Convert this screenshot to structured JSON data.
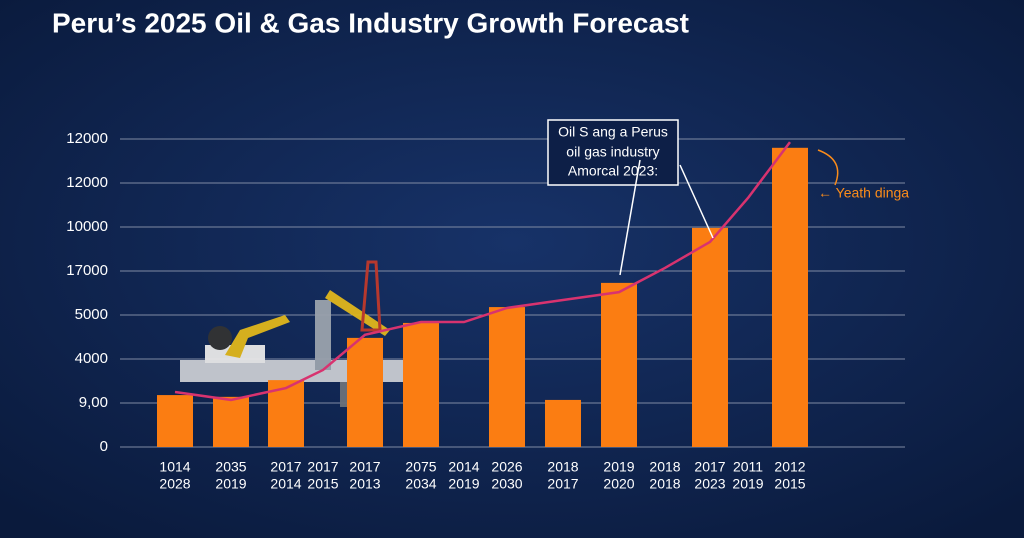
{
  "chart_data": {
    "type": "bar_line",
    "title": "Peru’s 2025 Oil & Gas Industry Growth Forecast",
    "annotation": [
      "Oil S ang a Perus",
      "oil gas industry",
      "Amorcal 2023:"
    ],
    "side_note": "← Yeath dinga",
    "categories": [
      [
        "1014",
        "2028"
      ],
      [
        "2035",
        "2019"
      ],
      [
        "2017",
        "2014"
      ],
      [
        "2017",
        "2015"
      ],
      [
        "2017",
        "2013"
      ],
      [
        "2075",
        "2034"
      ],
      [
        "2014",
        "2019"
      ],
      [
        "2026",
        "2030"
      ],
      [
        "2018",
        "2017"
      ],
      [
        "2019",
        "2020"
      ],
      [
        "2018",
        "2018"
      ],
      [
        "2017",
        "2023"
      ],
      [
        "2011",
        "2019"
      ],
      [
        "2012",
        "2015"
      ]
    ],
    "series": [
      {
        "type": "bar",
        "color": "#fb7d12",
        "values": [
          1.18,
          1.14,
          1.52,
          null,
          2.48,
          2.82,
          null,
          3.18,
          1.07,
          3.73,
          null,
          4.98,
          null,
          6.8
        ]
      },
      {
        "type": "line",
        "color": "#d8336f",
        "values": [
          1.25,
          1.07,
          1.34,
          1.75,
          2.55,
          2.84,
          2.84,
          3.16,
          3.34,
          3.52,
          4.07,
          4.66,
          5.66,
          6.93
        ]
      }
    ],
    "ylim": [
      0,
      7
    ],
    "yticks": [
      0,
      {
        "value": 1,
        "label": "9,00"
      },
      {
        "value": 2,
        "label": "4000"
      },
      {
        "value": 3,
        "label": "5000"
      },
      {
        "value": 4,
        "label": "17000"
      },
      {
        "value": 5,
        "label": "10000"
      },
      {
        "value": 6,
        "label": "12000"
      },
      {
        "value": 7,
        "label": "12000"
      }
    ],
    "grid": true
  }
}
